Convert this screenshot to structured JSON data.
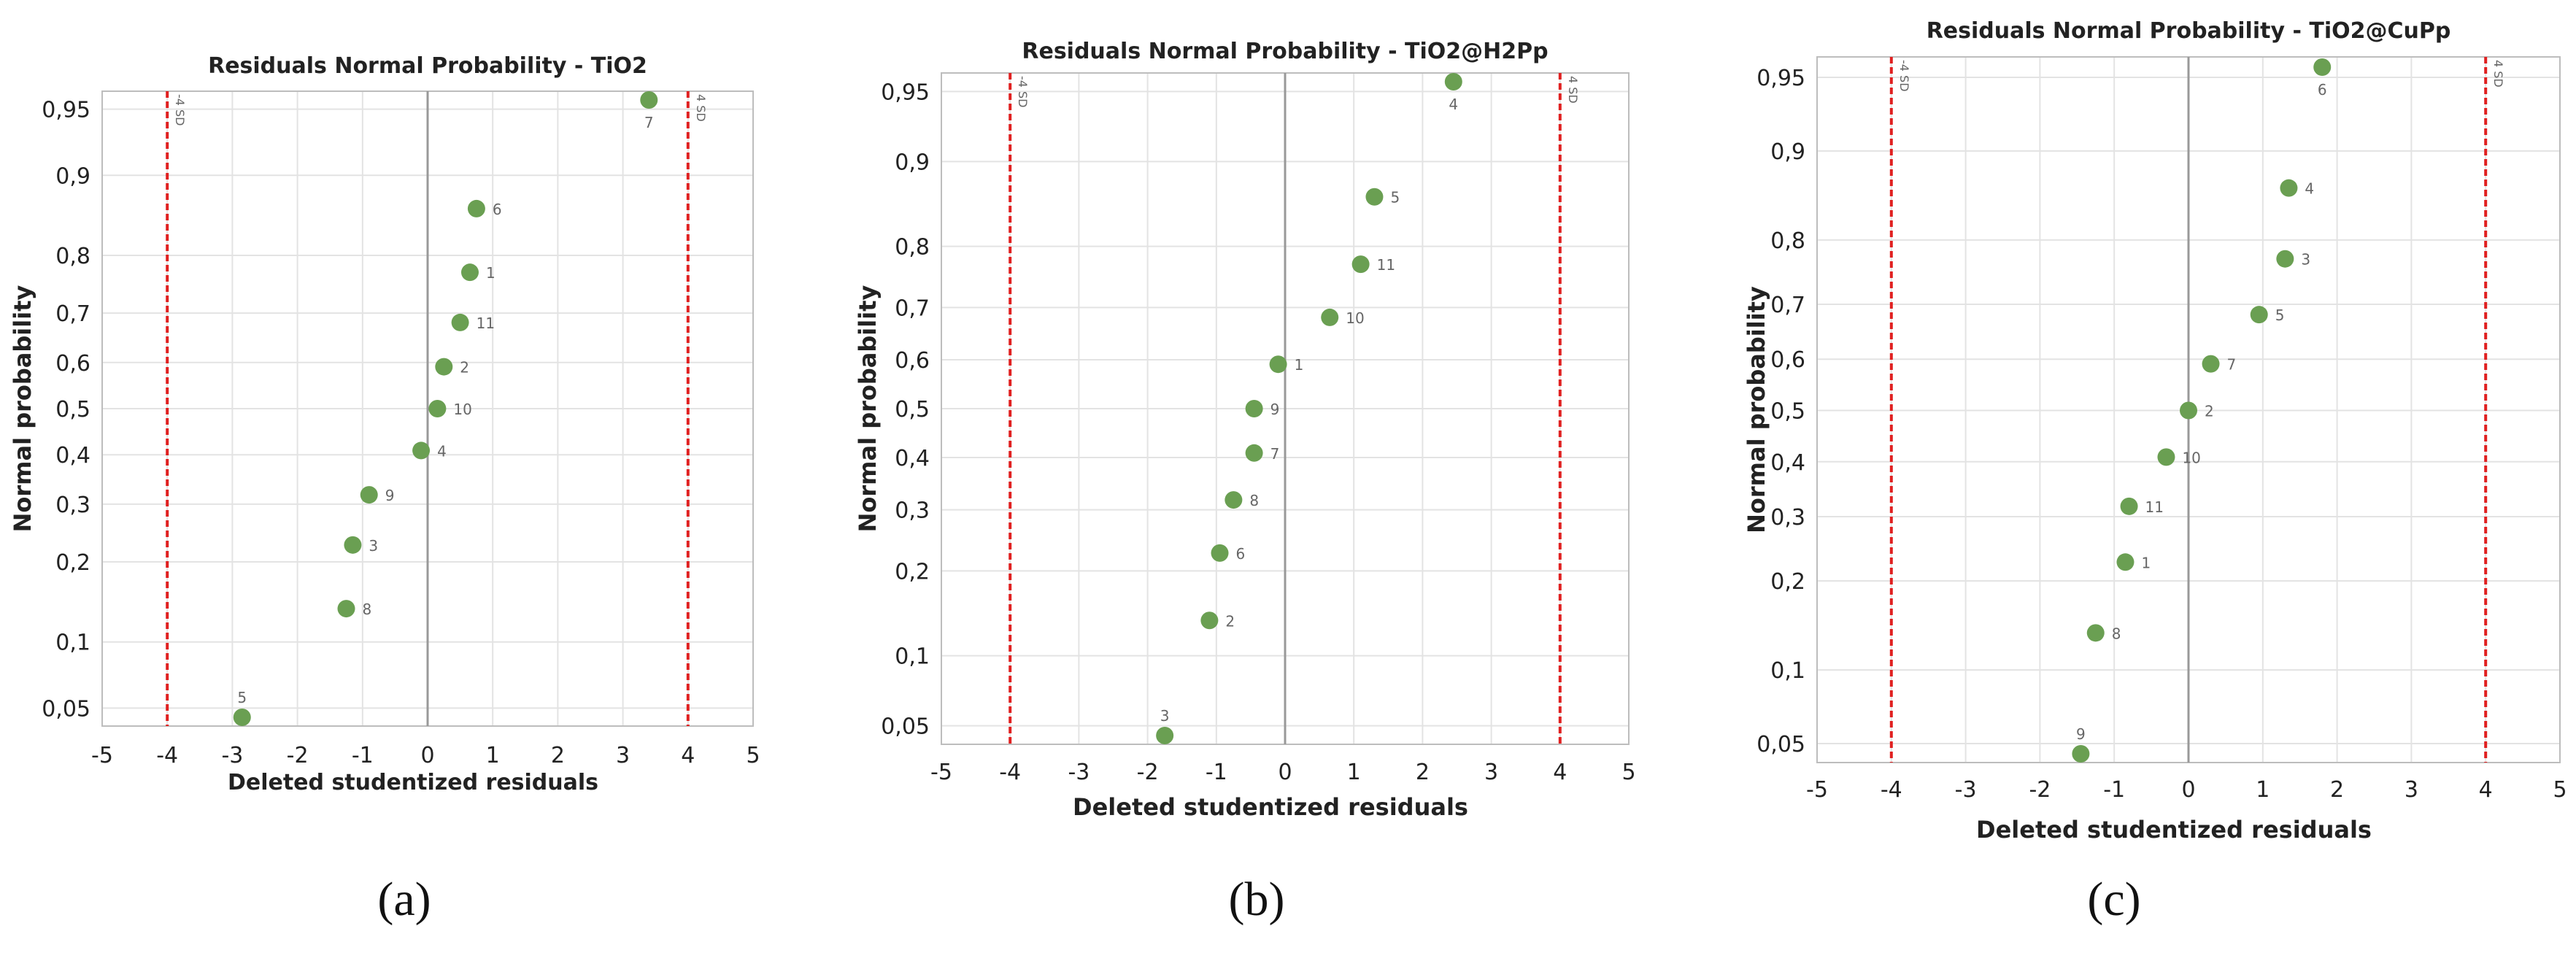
{
  "colors": {
    "point": "#6a9f52",
    "limit": "#e02020",
    "zero": "#999999",
    "grid": "#e3e3e3",
    "frame": "#bdbdbd"
  },
  "chart_data": [
    {
      "type": "scatter",
      "title": "Residuals Normal Probability - TiO2",
      "xlabel": "Deleted studentized residuals",
      "ylabel": "Normal probability",
      "xlim": [
        -5,
        5
      ],
      "ylim": [
        0.045,
        0.955
      ],
      "x_ticks": [
        "-5",
        "-4",
        "-3",
        "-2",
        "-1",
        "0",
        "1",
        "2",
        "3",
        "4",
        "5"
      ],
      "y_ticks": [
        "0,05",
        "0,1",
        "0,2",
        "0,3",
        "0,4",
        "0,5",
        "0,6",
        "0,7",
        "0,8",
        "0,9",
        "0,95"
      ],
      "limit_lines": [
        -4,
        4
      ],
      "limit_labels": [
        "-4 SD",
        "4 SD"
      ],
      "points": [
        {
          "label": "5",
          "x": -2.85,
          "p": 0.045
        },
        {
          "label": "8",
          "x": -1.25,
          "p": 0.136
        },
        {
          "label": "3",
          "x": -1.15,
          "p": 0.227
        },
        {
          "label": "9",
          "x": -0.9,
          "p": 0.318
        },
        {
          "label": "4",
          "x": -0.1,
          "p": 0.409
        },
        {
          "label": "10",
          "x": 0.15,
          "p": 0.5
        },
        {
          "label": "2",
          "x": 0.25,
          "p": 0.591
        },
        {
          "label": "11",
          "x": 0.5,
          "p": 0.682
        },
        {
          "label": "1",
          "x": 0.65,
          "p": 0.773
        },
        {
          "label": "6",
          "x": 0.75,
          "p": 0.864
        },
        {
          "label": "7",
          "x": 3.4,
          "p": 0.955
        }
      ],
      "caption": "(a)"
    },
    {
      "type": "scatter",
      "title": "Residuals Normal Probability - TiO2@H2Pp",
      "xlabel": "Deleted studentized residuals",
      "ylabel": "Normal probability",
      "xlim": [
        -5,
        5
      ],
      "ylim": [
        0.045,
        0.955
      ],
      "x_ticks": [
        "-5",
        "-4",
        "-3",
        "-2",
        "-1",
        "0",
        "1",
        "2",
        "3",
        "4",
        "5"
      ],
      "y_ticks": [
        "0,05",
        "0,1",
        "0,2",
        "0,3",
        "0,4",
        "0,5",
        "0,6",
        "0,7",
        "0,8",
        "0,9",
        "0,95"
      ],
      "limit_lines": [
        -4,
        4
      ],
      "limit_labels": [
        "-4 SD",
        "4 SD"
      ],
      "points": [
        {
          "label": "3",
          "x": -1.75,
          "p": 0.045
        },
        {
          "label": "2",
          "x": -1.1,
          "p": 0.136
        },
        {
          "label": "6",
          "x": -0.95,
          "p": 0.227
        },
        {
          "label": "8",
          "x": -0.75,
          "p": 0.318
        },
        {
          "label": "7",
          "x": -0.45,
          "p": 0.409
        },
        {
          "label": "9",
          "x": -0.45,
          "p": 0.5
        },
        {
          "label": "1",
          "x": -0.1,
          "p": 0.591
        },
        {
          "label": "10",
          "x": 0.65,
          "p": 0.682
        },
        {
          "label": "11",
          "x": 1.1,
          "p": 0.773
        },
        {
          "label": "5",
          "x": 1.3,
          "p": 0.864
        },
        {
          "label": "4",
          "x": 2.45,
          "p": 0.955
        }
      ],
      "caption": "(b)"
    },
    {
      "type": "scatter",
      "title": "Residuals Normal Probability - TiO2@CuPp",
      "xlabel": "Deleted studentized residuals",
      "ylabel": "Normal probability",
      "xlim": [
        -5,
        5
      ],
      "ylim": [
        0.045,
        0.955
      ],
      "x_ticks": [
        "-5",
        "-4",
        "-3",
        "-2",
        "-1",
        "0",
        "1",
        "2",
        "3",
        "4",
        "5"
      ],
      "y_ticks": [
        "0,05",
        "0,1",
        "0,2",
        "0,3",
        "0,4",
        "0,5",
        "0,6",
        "0,7",
        "0,8",
        "0,9",
        "0,95"
      ],
      "limit_lines": [
        -4,
        4
      ],
      "limit_labels": [
        "-4 SD",
        "4 SD"
      ],
      "points": [
        {
          "label": "9",
          "x": -1.45,
          "p": 0.045
        },
        {
          "label": "8",
          "x": -1.25,
          "p": 0.136
        },
        {
          "label": "1",
          "x": -0.85,
          "p": 0.227
        },
        {
          "label": "11",
          "x": -0.8,
          "p": 0.318
        },
        {
          "label": "10",
          "x": -0.3,
          "p": 0.409
        },
        {
          "label": "2",
          "x": 0.0,
          "p": 0.5
        },
        {
          "label": "7",
          "x": 0.3,
          "p": 0.591
        },
        {
          "label": "5",
          "x": 0.95,
          "p": 0.682
        },
        {
          "label": "3",
          "x": 1.3,
          "p": 0.773
        },
        {
          "label": "4",
          "x": 1.35,
          "p": 0.864
        },
        {
          "label": "6",
          "x": 1.8,
          "p": 0.955
        }
      ],
      "caption": "(c)"
    }
  ]
}
